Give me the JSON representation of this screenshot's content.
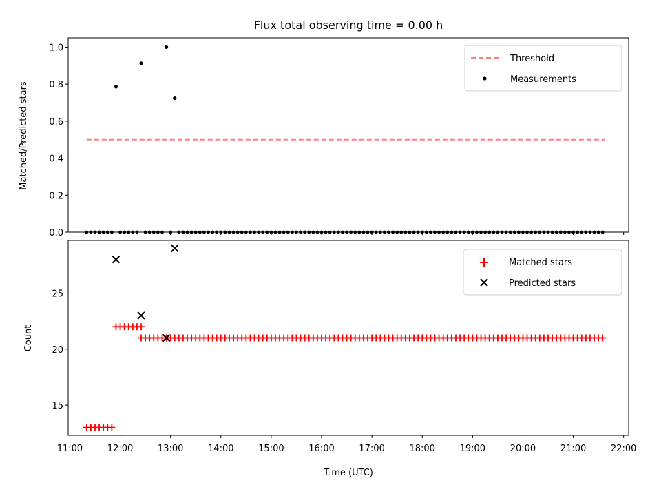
{
  "chart_data": [
    {
      "type": "scatter",
      "title": "Flux total observing time = 0.00 h",
      "xlabel": "",
      "ylabel": "Matched/Predicted stars",
      "xlim": [
        "10:58",
        "22:06"
      ],
      "ylim": [
        0.0,
        1.05
      ],
      "yticks": [
        0.0,
        0.2,
        0.4,
        0.6,
        0.8,
        1.0
      ],
      "ytick_labels": [
        "0.0",
        "0.2",
        "0.4",
        "0.6",
        "0.8",
        "1.0"
      ],
      "legend_position": "top-right",
      "colors": {
        "threshold": "#ff7f7f",
        "measurements": "#000000"
      },
      "threshold": {
        "name": "Threshold",
        "y": 0.5,
        "x_range": [
          "11:20",
          "21:38"
        ]
      },
      "measurements_name": "Measurements",
      "nonzero_points": [
        {
          "x": "11:55",
          "y": 0.786
        },
        {
          "x": "12:25",
          "y": 0.913
        },
        {
          "x": "12:55",
          "y": 1.0
        },
        {
          "x": "13:05",
          "y": 0.724
        }
      ],
      "zero_series": {
        "start": "11:20",
        "end": "21:38",
        "step_minutes": 5,
        "y": 0.0,
        "skip": [
          "11:55",
          "12:25",
          "12:55",
          "13:05"
        ]
      }
    },
    {
      "type": "scatter",
      "title": "",
      "xlabel": "Time (UTC)",
      "ylabel": "Count",
      "xlim": [
        "10:58",
        "22:06"
      ],
      "ylim": [
        12.3,
        29.7
      ],
      "yticks": [
        15,
        20,
        25
      ],
      "ytick_labels": [
        "15",
        "20",
        "25"
      ],
      "xticks": [
        "11:00",
        "12:00",
        "13:00",
        "14:00",
        "15:00",
        "16:00",
        "17:00",
        "18:00",
        "19:00",
        "20:00",
        "21:00",
        "22:00"
      ],
      "legend_position": "top-right",
      "colors": {
        "matched": "#ff0000",
        "predicted": "#000000"
      },
      "matched_name": "Matched stars",
      "predicted_name": "Predicted stars",
      "matched_segments": [
        {
          "start": "11:20",
          "end": "11:50",
          "step_minutes": 5,
          "value": 13
        },
        {
          "start": "11:55",
          "end": "12:25",
          "step_minutes": 5,
          "value": 22
        },
        {
          "start": "12:25",
          "end": "21:38",
          "step_minutes": 5,
          "value": 21
        }
      ],
      "predicted_points": [
        {
          "x": "11:55",
          "y": 28
        },
        {
          "x": "12:25",
          "y": 23
        },
        {
          "x": "12:55",
          "y": 21
        },
        {
          "x": "13:05",
          "y": 29
        }
      ]
    }
  ]
}
